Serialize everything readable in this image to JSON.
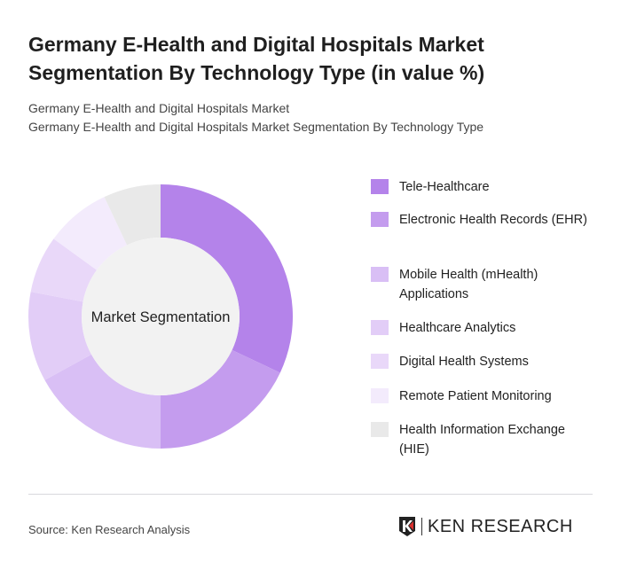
{
  "title": "Germany E-Health and Digital Hospitals Market Segmentation By Technology Type (in value %)",
  "subtitle1": "Germany E-Health and Digital Hospitals Market",
  "subtitle2": "Germany E-Health and Digital Hospitals Market Segmentation By Technology Type",
  "source": "Source: Ken Research Analysis",
  "logo_text": "KEN RESEARCH",
  "chart_data": {
    "type": "pie",
    "variant": "donut",
    "center_label": "Market Segmentation",
    "categories": [
      "Tele-Healthcare",
      "Electronic Health Records (EHR)",
      "Mobile Health (mHealth) Applications",
      "Healthcare Analytics",
      "Digital Health Systems",
      "Remote Patient Monitoring",
      "Health Information Exchange (HIE)"
    ],
    "values": [
      32,
      18,
      17,
      11,
      7,
      8,
      7
    ],
    "colors": [
      "#b483ea",
      "#c49cee",
      "#d9bff5",
      "#e2cdf7",
      "#e9d8f9",
      "#f3ebfc",
      "#e9e9e9"
    ],
    "legend_position": "right"
  }
}
